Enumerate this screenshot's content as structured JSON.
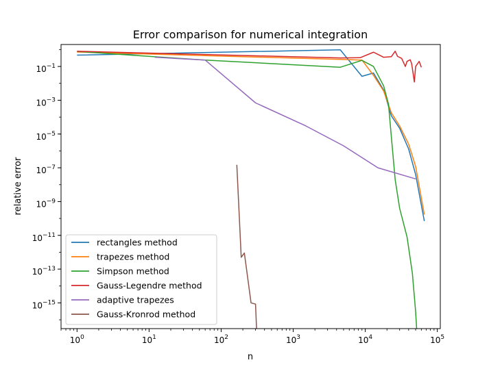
{
  "chart_data": {
    "type": "line",
    "title": "Error comparison for numerical integration",
    "xlabel": "n",
    "ylabel": "relative error",
    "xscale": "log",
    "yscale": "log",
    "xlim": [
      0.6,
      110000
    ],
    "ylim": [
      3e-17,
      2.0
    ],
    "grid": false,
    "legend_position": "lower-left",
    "x_ticks": [
      {
        "value": 1,
        "base": "10",
        "exp": "0"
      },
      {
        "value": 10,
        "base": "10",
        "exp": "1"
      },
      {
        "value": 100,
        "base": "10",
        "exp": "2"
      },
      {
        "value": 1000,
        "base": "10",
        "exp": "3"
      },
      {
        "value": 10000,
        "base": "10",
        "exp": "4"
      },
      {
        "value": 100000,
        "base": "10",
        "exp": "5"
      }
    ],
    "y_ticks": [
      {
        "value": 0.1,
        "base": "10",
        "exp": "−1"
      },
      {
        "value": 0.001,
        "base": "10",
        "exp": "−3"
      },
      {
        "value": 1e-05,
        "base": "10",
        "exp": "−5"
      },
      {
        "value": 1e-07,
        "base": "10",
        "exp": "−7"
      },
      {
        "value": 1e-09,
        "base": "10",
        "exp": "−9"
      },
      {
        "value": 1e-11,
        "base": "10",
        "exp": "−11"
      },
      {
        "value": 1e-13,
        "base": "10",
        "exp": "−13"
      },
      {
        "value": 1e-15,
        "base": "10",
        "exp": "−15"
      }
    ],
    "series": [
      {
        "name": "rectangles method",
        "color": "#1f77b4",
        "points": [
          [
            1,
            0.47
          ],
          [
            4500,
            0.97
          ],
          [
            9000,
            0.026
          ],
          [
            13000,
            0.041
          ],
          [
            18000,
            0.004
          ],
          [
            23000,
            0.00012
          ],
          [
            30000,
            2.2e-05
          ],
          [
            40000,
            1.3e-06
          ],
          [
            50000,
            4e-08
          ],
          [
            66000,
            7e-11
          ]
        ]
      },
      {
        "name": "trapezes method",
        "color": "#ff7f0e",
        "points": [
          [
            1,
            0.72
          ],
          [
            9000,
            0.24
          ],
          [
            13000,
            0.03
          ],
          [
            18000,
            0.0035
          ],
          [
            23000,
            0.00018
          ],
          [
            30000,
            3e-05
          ],
          [
            40000,
            2.5e-06
          ],
          [
            50000,
            1.2e-07
          ],
          [
            66000,
            1.7e-10
          ]
        ]
      },
      {
        "name": "Simpson method",
        "color": "#2ca02c",
        "points": [
          [
            1,
            0.78
          ],
          [
            3.3,
            0.55
          ],
          [
            13,
            0.37
          ],
          [
            60,
            0.24
          ],
          [
            4500,
            0.09
          ],
          [
            9000,
            0.23
          ],
          [
            13000,
            0.1
          ],
          [
            18000,
            0.007
          ],
          [
            21000,
            0.0006
          ],
          [
            23000,
            7e-06
          ],
          [
            26000,
            2e-08
          ],
          [
            30000,
            4e-10
          ],
          [
            38000,
            8e-12
          ],
          [
            45000,
            6e-14
          ],
          [
            50000,
            3e-16
          ],
          [
            53000,
            5e-18
          ],
          [
            54000,
            3e-17
          ]
        ]
      },
      {
        "name": "Gauss-Legendre method",
        "color": "#d62728",
        "points": [
          [
            1,
            0.8
          ],
          [
            4500,
            0.32
          ],
          [
            8500,
            0.33
          ],
          [
            13000,
            0.7
          ],
          [
            15000,
            0.52
          ],
          [
            18000,
            0.35
          ],
          [
            21000,
            0.37
          ],
          [
            23000,
            0.38
          ],
          [
            26000,
            0.8
          ],
          [
            28000,
            0.4
          ],
          [
            32000,
            0.3
          ],
          [
            36000,
            0.1
          ],
          [
            38000,
            0.2
          ],
          [
            42000,
            0.25
          ],
          [
            44000,
            0.15
          ],
          [
            48000,
            0.012
          ],
          [
            50000,
            0.1
          ],
          [
            56000,
            0.2
          ],
          [
            60000,
            0.09
          ]
        ]
      },
      {
        "name": "adaptive trapezes",
        "color": "#9467bd",
        "points": [
          [
            12,
            0.35
          ],
          [
            60,
            0.24
          ],
          [
            300,
            0.0007
          ],
          [
            1500,
            3e-05
          ],
          [
            5000,
            2e-06
          ],
          [
            15000,
            1e-07
          ],
          [
            50000,
            2.2e-08
          ]
        ]
      },
      {
        "name": "Gauss-Kronrod method",
        "color": "#8c564b",
        "points": [
          [
            165,
            1.5e-07
          ],
          [
            190,
            5e-13
          ],
          [
            210,
            9e-13
          ],
          [
            260,
            1e-15
          ],
          [
            300,
            8.5e-16
          ],
          [
            310,
            3e-17
          ]
        ]
      }
    ]
  }
}
